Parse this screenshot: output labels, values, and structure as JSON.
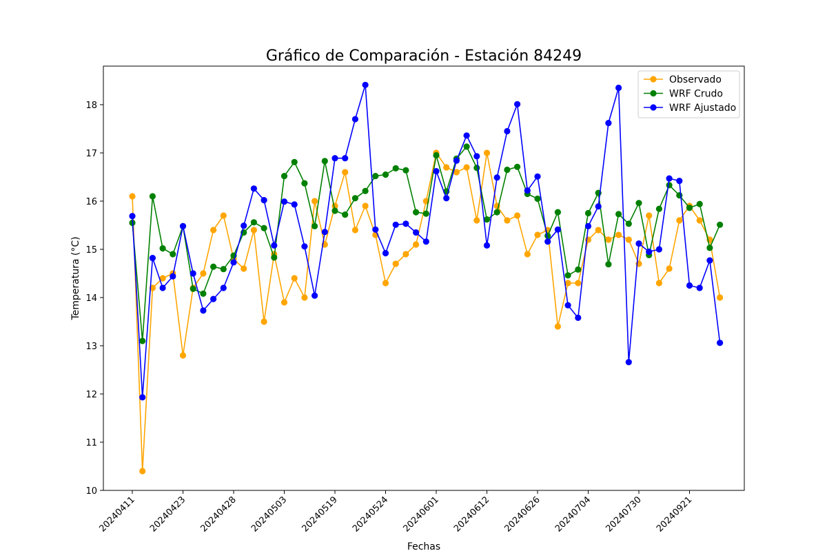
{
  "chart_data": {
    "type": "line",
    "title": "Gráfico de Comparación - Estación 84249",
    "xlabel": "Fechas",
    "ylabel": "Temperatura (°C)",
    "ylim": [
      10,
      18.8
    ],
    "yticks": [
      "10",
      "11",
      "12",
      "13",
      "14",
      "15",
      "16",
      "17",
      "18"
    ],
    "xtick_labels": [
      "20240411",
      "20240423",
      "20240428",
      "20240503",
      "20240519",
      "20240524",
      "20240601",
      "20240612",
      "20240626",
      "20240704",
      "20240730",
      "20240921"
    ],
    "grid": false,
    "legend_position": "top-right",
    "series": [
      {
        "name": "Observado",
        "color": "#ffa500",
        "values": [
          16.1,
          10.4,
          14.2,
          14.4,
          14.5,
          12.8,
          14.2,
          14.5,
          15.4,
          15.7,
          14.8,
          14.6,
          15.4,
          13.5,
          14.9,
          13.9,
          14.4,
          14.0,
          16.0,
          15.1,
          15.9,
          16.6,
          15.4,
          15.9,
          15.3,
          14.3,
          14.7,
          14.9,
          15.1,
          16.0,
          17.0,
          16.7,
          16.6,
          16.7,
          15.6,
          17.0,
          15.9,
          15.6,
          15.7,
          14.9,
          15.3,
          15.4,
          13.4,
          14.3,
          14.3,
          15.2,
          15.4,
          15.2,
          15.3,
          15.2,
          14.7,
          15.7,
          14.3,
          14.6,
          15.6,
          15.9,
          15.6,
          15.2,
          14.0
        ]
      },
      {
        "name": "WRF Crudo",
        "color": "#008000",
        "values": [
          15.55,
          13.1,
          16.1,
          15.02,
          14.9,
          15.48,
          14.18,
          14.08,
          14.64,
          14.59,
          14.87,
          15.35,
          15.56,
          15.44,
          14.83,
          16.52,
          16.81,
          16.37,
          15.48,
          16.83,
          15.8,
          15.72,
          16.06,
          16.21,
          16.52,
          16.55,
          16.68,
          16.64,
          15.77,
          15.74,
          16.95,
          16.2,
          16.88,
          17.13,
          16.69,
          15.62,
          15.77,
          16.65,
          16.71,
          16.15,
          16.05,
          15.28,
          15.77,
          14.46,
          14.58,
          15.75,
          16.17,
          14.69,
          15.73,
          15.53,
          15.96,
          14.88,
          15.84,
          16.33,
          16.12,
          15.86,
          15.94,
          15.03,
          15.51
        ]
      },
      {
        "name": "WRF Ajustado",
        "color": "#0000ff",
        "values": [
          15.69,
          11.93,
          14.82,
          14.2,
          14.44,
          15.48,
          14.5,
          13.73,
          13.97,
          14.2,
          14.73,
          15.49,
          16.26,
          16.02,
          15.08,
          15.99,
          15.93,
          15.06,
          14.04,
          15.36,
          16.89,
          16.89,
          17.7,
          18.41,
          15.41,
          14.92,
          15.51,
          15.53,
          15.35,
          15.16,
          16.62,
          16.06,
          16.84,
          17.36,
          16.93,
          15.08,
          16.49,
          17.45,
          18.01,
          16.22,
          16.51,
          15.16,
          15.41,
          13.84,
          13.58,
          15.48,
          15.89,
          17.62,
          18.35,
          12.66,
          15.12,
          14.95,
          15.0,
          16.47,
          16.42,
          14.25,
          14.2,
          14.77,
          13.06
        ]
      }
    ]
  }
}
